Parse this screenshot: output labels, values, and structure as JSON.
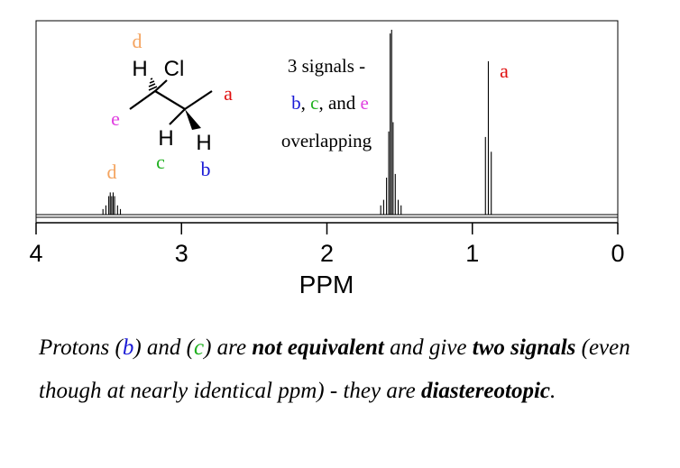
{
  "chart_data": {
    "type": "line",
    "xlabel": "PPM",
    "xlim": [
      4,
      0
    ],
    "x_reversed": true,
    "x_ticks": [
      4,
      3,
      2,
      1,
      0
    ],
    "x_tick_labels": [
      "4",
      "3",
      "2",
      "1",
      "0"
    ],
    "grid": false,
    "peaks": [
      {
        "label": "d",
        "center": 3.48,
        "color": "#f4a460",
        "lines": [
          [
            3.42,
            0.03
          ],
          [
            3.44,
            0.05
          ],
          [
            3.46,
            0.1
          ],
          [
            3.47,
            0.12
          ],
          [
            3.48,
            0.1
          ],
          [
            3.49,
            0.12
          ],
          [
            3.5,
            0.1
          ],
          [
            3.52,
            0.05
          ],
          [
            3.54,
            0.03
          ]
        ]
      },
      {
        "label": "b, c, e",
        "center": 1.55,
        "color": "#000000",
        "lines": [
          [
            1.49,
            0.05
          ],
          [
            1.51,
            0.08
          ],
          [
            1.53,
            0.22
          ],
          [
            1.545,
            0.5
          ],
          [
            1.555,
            1.0
          ],
          [
            1.565,
            0.98
          ],
          [
            1.575,
            0.45
          ],
          [
            1.59,
            0.2
          ],
          [
            1.61,
            0.08
          ],
          [
            1.63,
            0.05
          ]
        ]
      },
      {
        "label": "a",
        "center": 0.89,
        "color": "#e01010",
        "lines": [
          [
            0.87,
            0.34
          ],
          [
            0.89,
            0.83
          ],
          [
            0.91,
            0.42
          ]
        ]
      }
    ]
  },
  "peak_labels": {
    "d": "d",
    "a": "a"
  },
  "annotation": {
    "line1": "3 signals -",
    "b": "b",
    "comma": ", ",
    "c": "c",
    "and": ", and ",
    "e": "e",
    "line3": "overlapping"
  },
  "molecule": {
    "label_d": "d",
    "label_a": "a",
    "label_e": "e",
    "label_c": "c",
    "label_b": "b",
    "atom_H1": "H",
    "atom_Cl": "Cl",
    "atom_H2": "H",
    "atom_H3": "H"
  },
  "colors": {
    "a": "#e01010",
    "b": "#1a1ad6",
    "c": "#20b020",
    "d": "#f4a460",
    "e": "#e040e0"
  },
  "caption": {
    "p1": "Protons (",
    "b": "b",
    "p2": ") and (",
    "c": "c",
    "p3": ") are ",
    "bold1": "not equivalent",
    "p4": " and give ",
    "bold2": "two signals",
    "p5": " (even though at nearly identical ppm) - they are ",
    "bold3": "diastereotopic",
    "p6": "."
  }
}
